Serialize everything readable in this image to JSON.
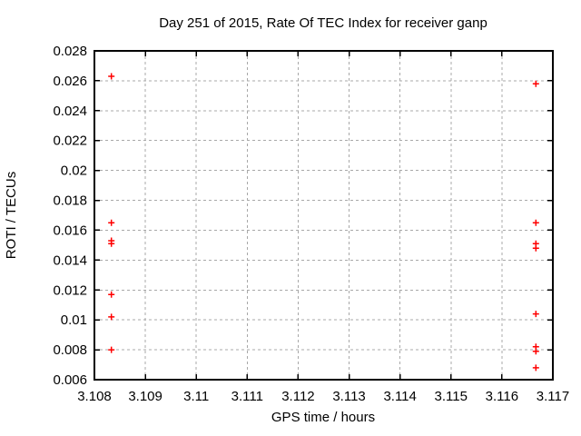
{
  "chart_data": {
    "type": "scatter",
    "title": "Day 251 of 2015, Rate Of TEC Index for receiver ganp",
    "xlabel": "GPS time / hours",
    "ylabel": "ROTI / TECUs",
    "xlim": [
      3.108,
      3.117
    ],
    "ylim": [
      0.006,
      0.028
    ],
    "xticks": [
      3.108,
      3.109,
      3.11,
      3.111,
      3.112,
      3.113,
      3.114,
      3.115,
      3.116,
      3.117
    ],
    "xtick_labels": [
      "3.108",
      "3.109",
      "3.11",
      "3.111",
      "3.112",
      "3.113",
      "3.114",
      "3.115",
      "3.116",
      "3.117"
    ],
    "yticks": [
      0.006,
      0.008,
      0.01,
      0.012,
      0.014,
      0.016,
      0.018,
      0.02,
      0.022,
      0.024,
      0.026,
      0.028
    ],
    "ytick_labels": [
      "0.006",
      "0.008",
      "0.01",
      "0.012",
      "0.014",
      "0.016",
      "0.018",
      "0.02",
      "0.022",
      "0.024",
      "0.026",
      "0.028"
    ],
    "grid": true,
    "legend": "none",
    "marker": "plus",
    "marker_color": "#ff0000",
    "grid_color": "#a8a8a8",
    "border_color": "#000000",
    "series": [
      {
        "name": "ROTI",
        "points": [
          {
            "x": 3.108333,
            "y": 0.0263
          },
          {
            "x": 3.108333,
            "y": 0.0165
          },
          {
            "x": 3.108333,
            "y": 0.0153
          },
          {
            "x": 3.108333,
            "y": 0.0151
          },
          {
            "x": 3.108333,
            "y": 0.0117
          },
          {
            "x": 3.108333,
            "y": 0.0102
          },
          {
            "x": 3.108333,
            "y": 0.008
          },
          {
            "x": 3.116667,
            "y": 0.0258
          },
          {
            "x": 3.116667,
            "y": 0.0165
          },
          {
            "x": 3.116667,
            "y": 0.0151
          },
          {
            "x": 3.116667,
            "y": 0.0148
          },
          {
            "x": 3.116667,
            "y": 0.0104
          },
          {
            "x": 3.116667,
            "y": 0.0082
          },
          {
            "x": 3.116667,
            "y": 0.0079
          },
          {
            "x": 3.116667,
            "y": 0.0068
          }
        ]
      }
    ]
  }
}
